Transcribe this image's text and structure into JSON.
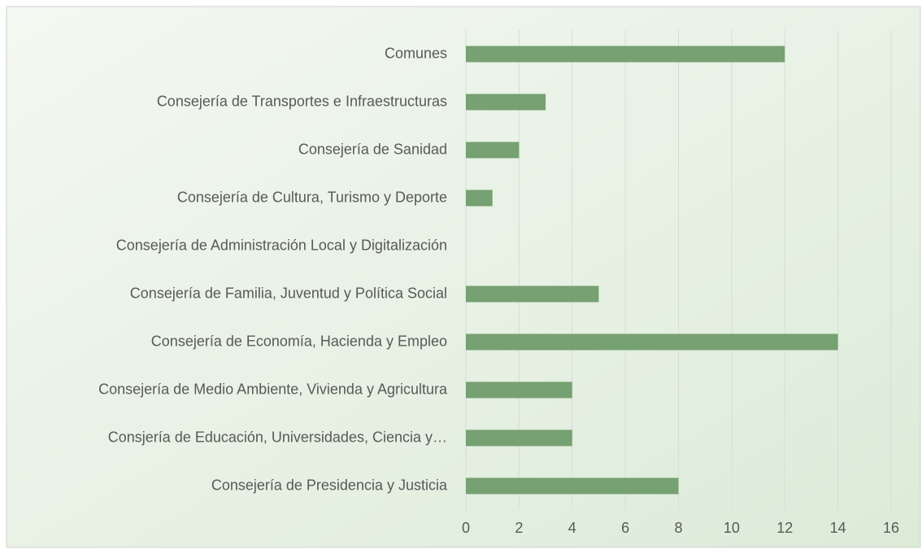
{
  "chart_data": {
    "type": "bar",
    "orientation": "horizontal",
    "categories": [
      "Comunes",
      "Consejería de Transportes e Infraestructuras",
      "Consejería de Sanidad",
      "Consejería de Cultura, Turismo y Deporte",
      "Consejería de Administración Local y Digitalización",
      "Consejería de Familia, Juventud y Política Social",
      "Consejería de Economía, Hacienda y Empleo",
      "Consejería de Medio Ambiente, Vivienda y Agricultura",
      "Consjería de Educación, Universidades, Ciencia y…",
      "Consejería de Presidencia y Justicia"
    ],
    "values": [
      12,
      3,
      2,
      1,
      0,
      5,
      14,
      4,
      4,
      8
    ],
    "color": "#76a172",
    "xlim": [
      0,
      16
    ],
    "xticks": [
      0,
      2,
      4,
      6,
      8,
      10,
      12,
      14,
      16
    ],
    "grid": true
  }
}
